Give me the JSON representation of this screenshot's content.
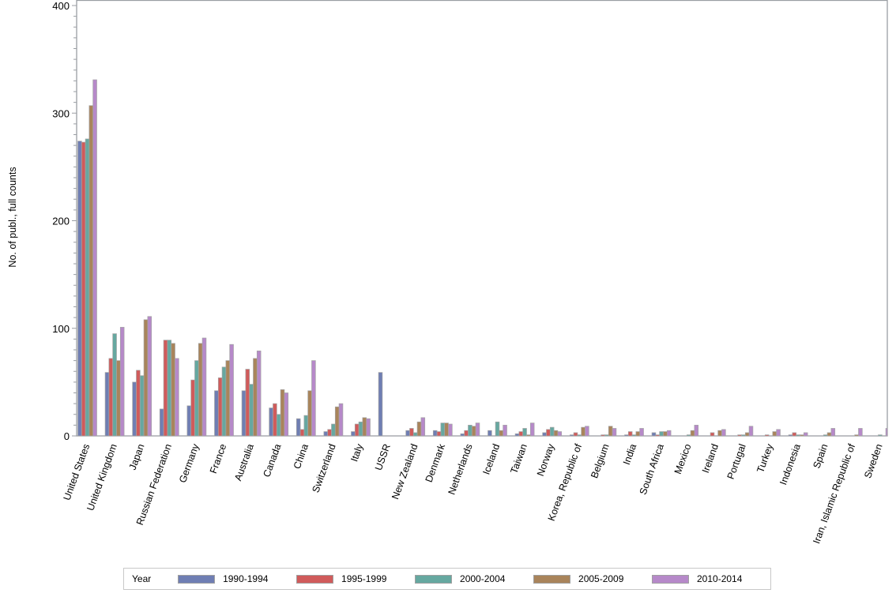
{
  "chart_data": {
    "type": "bar",
    "title": "",
    "xlabel": "",
    "ylabel": "No. of publ., full counts",
    "ylim": [
      0,
      400
    ],
    "yticks": [
      0,
      100,
      200,
      300,
      400
    ],
    "grid": false,
    "legend_position": "bottom",
    "legend_title": "Year",
    "categories": [
      "United States",
      "United Kingdom",
      "Japan",
      "Russian Federation",
      "Germany",
      "France",
      "Australia",
      "Canada",
      "China",
      "Switzerland",
      "Italy",
      "USSR",
      "New Zealand",
      "Denmark",
      "Netherlands",
      "Iceland",
      "Taiwan",
      "Norway",
      "Korea, Republic of",
      "Belgium",
      "India",
      "South Africa",
      "Mexico",
      "Ireland",
      "Portugal",
      "Turkey",
      "Indonesia",
      "Spain",
      "Iran, Islamic Republic of",
      "Sweden"
    ],
    "series": [
      {
        "name": "1990-1994",
        "color": "#6f7eb3",
        "values": [
          274,
          59,
          50,
          25,
          28,
          42,
          42,
          26,
          16,
          4,
          4,
          59,
          5,
          5,
          2,
          5,
          2,
          3,
          1,
          0,
          1,
          3,
          0,
          0,
          0,
          0,
          1,
          0,
          0,
          0
        ]
      },
      {
        "name": "1995-1999",
        "color": "#d05b5b",
        "values": [
          273,
          72,
          61,
          89,
          52,
          54,
          62,
          30,
          6,
          6,
          11,
          0,
          7,
          4,
          5,
          0,
          4,
          6,
          3,
          1,
          4,
          1,
          0,
          3,
          1,
          1,
          3,
          0,
          0,
          0
        ]
      },
      {
        "name": "2000-2004",
        "color": "#66a8a0",
        "values": [
          276,
          95,
          56,
          89,
          70,
          64,
          48,
          20,
          19,
          11,
          13,
          0,
          3,
          12,
          10,
          13,
          7,
          8,
          1,
          1,
          1,
          4,
          1,
          0,
          1,
          0,
          1,
          1,
          0,
          1
        ]
      },
      {
        "name": "2005-2009",
        "color": "#a9845b",
        "values": [
          307,
          70,
          108,
          86,
          86,
          70,
          72,
          43,
          42,
          27,
          17,
          0,
          13,
          12,
          9,
          5,
          1,
          5,
          8,
          9,
          4,
          4,
          5,
          5,
          3,
          4,
          1,
          3,
          1,
          0
        ]
      },
      {
        "name": "2010-2014",
        "color": "#b689c9",
        "values": [
          331,
          101,
          111,
          72,
          91,
          85,
          79,
          40,
          70,
          30,
          16,
          0,
          17,
          11,
          12,
          10,
          12,
          4,
          9,
          7,
          7,
          5,
          10,
          6,
          9,
          6,
          3,
          7,
          7,
          7
        ]
      }
    ]
  },
  "legend": {
    "title": "Year",
    "items": [
      {
        "label": "1990-1994",
        "color": "#6f7eb3"
      },
      {
        "label": "1995-1999",
        "color": "#d05b5b"
      },
      {
        "label": "2000-2004",
        "color": "#66a8a0"
      },
      {
        "label": "2005-2009",
        "color": "#a9845b"
      },
      {
        "label": "2010-2014",
        "color": "#b689c9"
      }
    ]
  },
  "axis": {
    "y_label": "No. of publ., full counts",
    "y_tick_labels": [
      "0",
      "100",
      "200",
      "300",
      "400"
    ]
  }
}
